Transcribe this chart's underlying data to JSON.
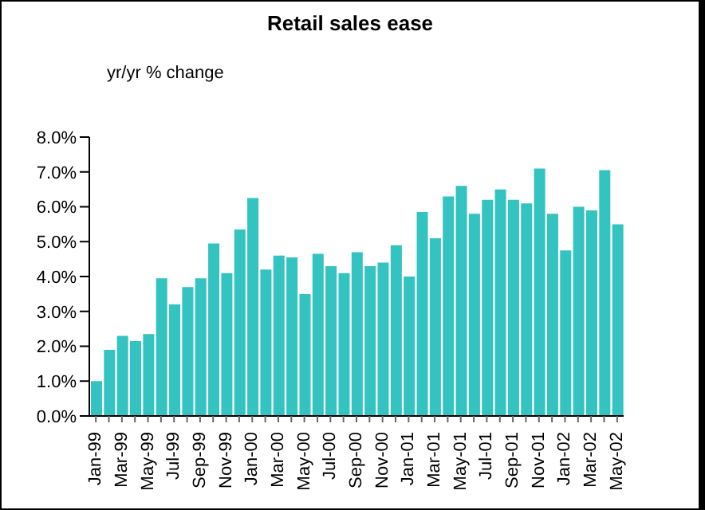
{
  "chart_data": {
    "type": "bar",
    "title": "Retail sales ease",
    "annotations": [
      "yr/yr % change"
    ],
    "categories": [
      "Jan-99",
      null,
      "Mar-99",
      null,
      "May-99",
      null,
      "Jul-99",
      null,
      "Sep-99",
      null,
      "Nov-99",
      null,
      "Jan-00",
      null,
      "Mar-00",
      null,
      "May-00",
      null,
      "Jul-00",
      null,
      "Sep-00",
      null,
      "Nov-00",
      null,
      "Jan-01",
      null,
      "Mar-01",
      null,
      "May-01",
      null,
      "Jul-01",
      null,
      "Sep-01",
      null,
      "Nov-01",
      null,
      "Jan-02",
      null,
      "Mar-02",
      null,
      "May-02"
    ],
    "values": [
      1.0,
      1.9,
      2.3,
      2.15,
      2.35,
      3.95,
      3.2,
      3.7,
      3.95,
      4.95,
      4.1,
      5.35,
      6.25,
      4.2,
      4.6,
      4.55,
      3.5,
      4.65,
      4.3,
      4.1,
      4.7,
      4.3,
      4.4,
      4.9,
      4.0,
      5.85,
      5.1,
      6.3,
      6.6,
      5.8,
      6.2,
      6.5,
      6.2,
      6.1,
      7.1,
      5.8,
      4.75,
      6.0,
      5.9,
      7.05,
      5.5
    ],
    "color": "#33c3c0",
    "ylim": [
      0,
      8
    ],
    "yticks": [
      {
        "value": 0,
        "label": "0.0%"
      },
      {
        "value": 1,
        "label": "1.0%"
      },
      {
        "value": 2,
        "label": "2.0%"
      },
      {
        "value": 3,
        "label": "3.0%"
      },
      {
        "value": 4,
        "label": "4.0%"
      },
      {
        "value": 5,
        "label": "5.0%"
      },
      {
        "value": 6,
        "label": "6.0%"
      },
      {
        "value": 7,
        "label": "7.0%"
      },
      {
        "value": 8,
        "label": "8.0%"
      }
    ],
    "grid": false,
    "legend": false
  }
}
